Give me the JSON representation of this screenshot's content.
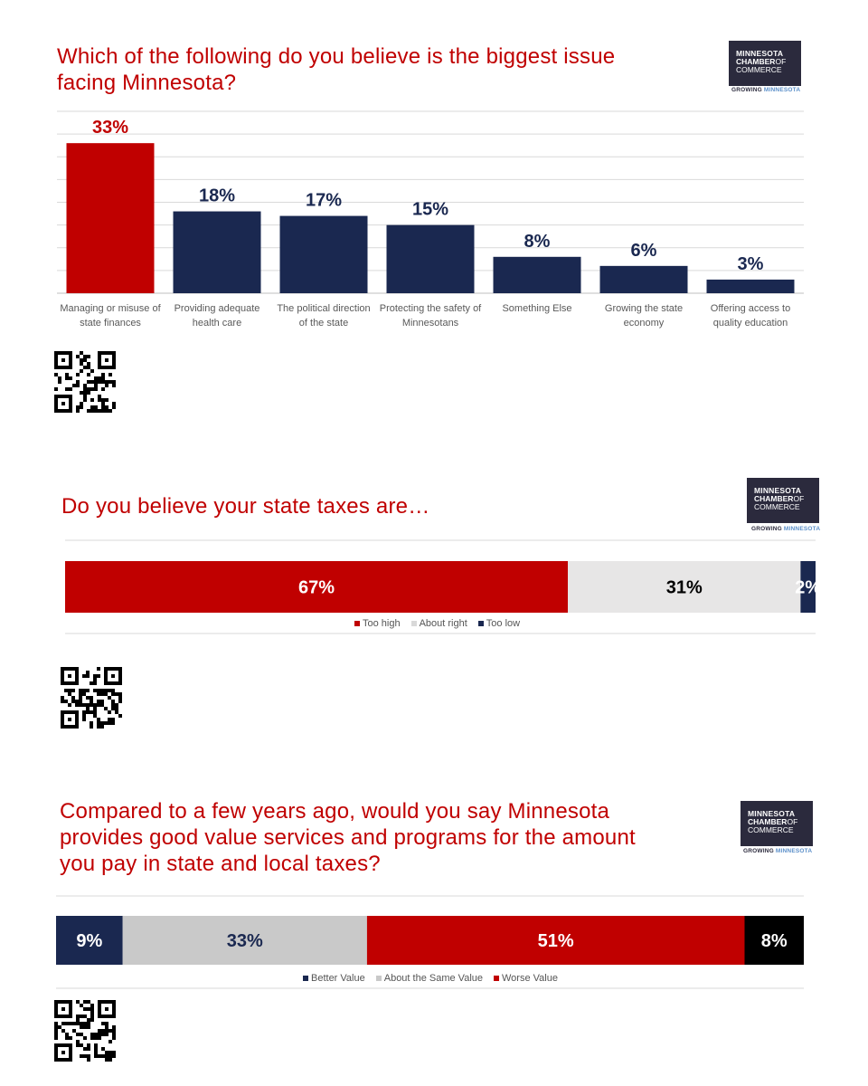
{
  "colors": {
    "red": "#c00000",
    "navy": "#1a2850",
    "light_gray": "#e7e6e6",
    "mid_gray": "#c9c9c9",
    "black": "#000000"
  },
  "logo": {
    "line1": "MINNESOTA",
    "line2": "CHAMBER",
    "line2_suffix": "OF",
    "line3": "COMMERCE",
    "tag_prefix": "GROWING",
    "tag_suffix": "MINNESOTA"
  },
  "qr_icon": "qr-code-icon",
  "chart_data": [
    {
      "type": "bar",
      "title": "Which of the following do you believe is the biggest issue facing Minnesota?",
      "categories": [
        [
          "Managing or misuse of",
          "state finances"
        ],
        [
          "Providing adequate",
          "health care"
        ],
        [
          "The political direction",
          "of the state"
        ],
        [
          "Protecting the safety of",
          "Minnesotans"
        ],
        [
          "Something Else"
        ],
        [
          "Growing the state",
          "economy"
        ],
        [
          "Offering access to",
          "quality education"
        ]
      ],
      "values": [
        33,
        18,
        17,
        15,
        8,
        6,
        3
      ],
      "value_labels": [
        "33%",
        "18%",
        "17%",
        "15%",
        "8%",
        "6%",
        "3%"
      ],
      "highlight_index": 0,
      "ylim": [
        0,
        40
      ],
      "grid": true
    },
    {
      "type": "bar",
      "orientation": "horizontal-stacked",
      "title": "Do you believe your state taxes are…",
      "series": [
        {
          "name": "Too high",
          "value": 67,
          "label": "67%",
          "color": "#c00000",
          "text_color": "#ffffff"
        },
        {
          "name": "About right",
          "value": 31,
          "label": "31%",
          "color": "#e7e6e6",
          "text_color": "#000000"
        },
        {
          "name": "Too low",
          "value": 2,
          "label": "2%",
          "color": "#1a2850",
          "text_color": "#ffffff"
        }
      ],
      "legend": "bottom"
    },
    {
      "type": "bar",
      "orientation": "horizontal-stacked",
      "title": "Compared to a few years ago, would you say Minnesota provides good value services and programs for the amount you pay in state and local taxes?",
      "title_lines": [
        "Compared to a few years ago, would you say Minnesota",
        "provides good value services and programs for the amount",
        "you pay in state and local taxes?"
      ],
      "series": [
        {
          "name": "Better Value",
          "value": 9,
          "label": "9%",
          "color": "#1a2850",
          "text_color": "#ffffff"
        },
        {
          "name": "About the Same Value",
          "value": 33,
          "label": "33%",
          "color": "#c9c9c9",
          "text_color": "#1a2850"
        },
        {
          "name": "Worse Value",
          "value": 51,
          "label": "51%",
          "color": "#c00000",
          "text_color": "#ffffff"
        },
        {
          "name": "",
          "value": 8,
          "label": "8%",
          "color": "#000000",
          "text_color": "#ffffff"
        }
      ],
      "legend": "bottom"
    }
  ]
}
